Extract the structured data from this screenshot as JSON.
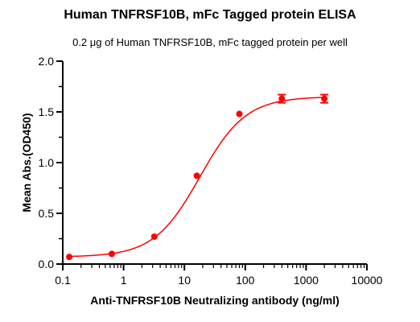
{
  "chart_data": {
    "type": "scatter",
    "title": "Human TNFRSF10B,  mFc Tagged protein ELISA",
    "subtitle": "0.2 μg of Human TNFRSF10B, mFc tagged protein per well",
    "xlabel": "Anti-TNFRSF10B Neutralizing antibody (ng/ml)",
    "ylabel": "Mean Abs.(OD450)",
    "xscale": "log",
    "xlim": [
      0.1,
      10000
    ],
    "ylim": [
      0,
      2.0
    ],
    "xticks": [
      "0.1",
      "1",
      "10",
      "100",
      "1000",
      "10000"
    ],
    "yticks": [
      "0.0",
      "0.5",
      "1.0",
      "1.5",
      "2.0"
    ],
    "grid": false,
    "color": "#ff0000",
    "series": [
      {
        "x": [
          0.128,
          0.64,
          3.2,
          16,
          80,
          400,
          2000
        ],
        "y": [
          0.07,
          0.1,
          0.27,
          0.87,
          1.48,
          1.63,
          1.63
        ],
        "error": [
          0,
          0,
          0,
          0,
          0,
          0.04,
          0.04
        ]
      }
    ],
    "fit": {
      "model": "4PL",
      "bottom": 0.07,
      "top": 1.65,
      "ec50": 18,
      "hill": 1.15
    }
  }
}
